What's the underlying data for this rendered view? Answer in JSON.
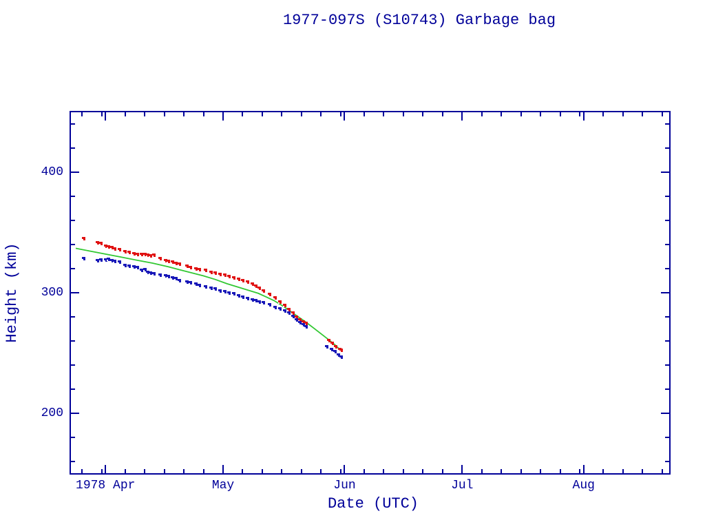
{
  "colors": {
    "background": "#ffffff",
    "axis_and_text": "#000099",
    "red_series": "#e01212",
    "blue_series": "#1818b8",
    "green_series": "#32c832"
  },
  "chart_data": {
    "type": "scatter",
    "title": "1977-097S (S10743) Garbage bag",
    "xlabel": "Date (UTC)",
    "ylabel": "Height (km)",
    "grid": false,
    "legend": "none",
    "x_axis": {
      "unit_note": "days since 1978-03-23; axis spans 1978 Mar 23 - Aug 23",
      "domain": [
        0,
        153
      ],
      "major_ticks": [
        {
          "day": 9,
          "label": "1978 Apr"
        },
        {
          "day": 39,
          "label": "May"
        },
        {
          "day": 70,
          "label": "Jun"
        },
        {
          "day": 100,
          "label": "Jul"
        },
        {
          "day": 131,
          "label": "Aug"
        }
      ],
      "minor_tick_days": [
        3,
        8,
        14,
        19,
        24,
        29,
        34,
        44,
        49,
        54,
        59,
        64,
        69,
        75,
        80,
        85,
        90,
        95,
        105,
        110,
        115,
        120,
        125,
        130,
        136,
        141,
        146,
        151
      ]
    },
    "y_axis": {
      "domain": [
        150,
        450
      ],
      "major_ticks": [
        {
          "value": 200,
          "label": "200"
        },
        {
          "value": 300,
          "label": "300"
        },
        {
          "value": 400,
          "label": "400"
        }
      ],
      "minor_tick_values": [
        160,
        180,
        220,
        240,
        260,
        280,
        320,
        340,
        360,
        380,
        420,
        440
      ]
    },
    "series": [
      {
        "name": "red-square-series",
        "type": "scatter",
        "marker": "square",
        "color": "#e01212",
        "points": [
          [
            3.5,
            344.5
          ],
          [
            7,
            341.5
          ],
          [
            7.8,
            341
          ],
          [
            9,
            338.5
          ],
          [
            9.8,
            338
          ],
          [
            10.6,
            337.2
          ],
          [
            11.4,
            336.5
          ],
          [
            12.6,
            335.5
          ],
          [
            13.9,
            334.2
          ],
          [
            15.1,
            333.2
          ],
          [
            16.2,
            332.4
          ],
          [
            17.1,
            331.8
          ],
          [
            18.1,
            331.8
          ],
          [
            19,
            331.5
          ],
          [
            19.7,
            331.3
          ],
          [
            20.4,
            330.7
          ],
          [
            21.3,
            331.3
          ],
          [
            22.9,
            328
          ],
          [
            24.3,
            326.7
          ],
          [
            25.1,
            326.2
          ],
          [
            26,
            325.2
          ],
          [
            27,
            324.5
          ],
          [
            27.9,
            323.4
          ],
          [
            29.7,
            321.7
          ],
          [
            30.6,
            321
          ],
          [
            32,
            319.9
          ],
          [
            33,
            318.9
          ],
          [
            34.6,
            318.4
          ],
          [
            36,
            316.8
          ],
          [
            36.9,
            316.5
          ],
          [
            38.2,
            315.2
          ],
          [
            39.4,
            314.7
          ],
          [
            40.5,
            313.5
          ],
          [
            41.7,
            312.4
          ],
          [
            43,
            311
          ],
          [
            44,
            310.2
          ],
          [
            45.2,
            308.8
          ],
          [
            46.4,
            307.2
          ],
          [
            47.3,
            305.5
          ],
          [
            48.2,
            303.5
          ],
          [
            49.2,
            301.5
          ],
          [
            50.8,
            298.5
          ],
          [
            52.2,
            295.5
          ],
          [
            53.5,
            292.5
          ],
          [
            54.7,
            289.5
          ],
          [
            55.8,
            286
          ],
          [
            56.8,
            283
          ],
          [
            57.7,
            280
          ],
          [
            58.6,
            277.5
          ],
          [
            59.4,
            276
          ],
          [
            60.1,
            274.5
          ],
          [
            65.9,
            260.6
          ],
          [
            66.9,
            258
          ],
          [
            67.8,
            255.5
          ],
          [
            68.7,
            253
          ],
          [
            69.2,
            252.5
          ]
        ]
      },
      {
        "name": "blue-square-series",
        "type": "scatter",
        "marker": "square",
        "color": "#1818b8",
        "points": [
          [
            3.5,
            328.5
          ],
          [
            7,
            326.7
          ],
          [
            7.8,
            327.3
          ],
          [
            9,
            327.3
          ],
          [
            9.8,
            327.8
          ],
          [
            10.6,
            326.7
          ],
          [
            11.4,
            326.2
          ],
          [
            12.6,
            325.6
          ],
          [
            13.9,
            322.8
          ],
          [
            15.1,
            322.2
          ],
          [
            16.2,
            321.5
          ],
          [
            17.1,
            321
          ],
          [
            18.1,
            318.7
          ],
          [
            19,
            319.3
          ],
          [
            19.7,
            317
          ],
          [
            20.4,
            316.4
          ],
          [
            21.3,
            315.9
          ],
          [
            22.9,
            314.7
          ],
          [
            24.3,
            314.2
          ],
          [
            25.1,
            313.6
          ],
          [
            26,
            312.4
          ],
          [
            27,
            311.8
          ],
          [
            27.9,
            310.1
          ],
          [
            29.7,
            308.9
          ],
          [
            30.6,
            308.3
          ],
          [
            32,
            307
          ],
          [
            33,
            306
          ],
          [
            34.6,
            305
          ],
          [
            36,
            303.5
          ],
          [
            36.9,
            303
          ],
          [
            38.2,
            301.5
          ],
          [
            39.4,
            301
          ],
          [
            40.5,
            300
          ],
          [
            41.7,
            299
          ],
          [
            43,
            297.5
          ],
          [
            44,
            296.5
          ],
          [
            45.2,
            295
          ],
          [
            46.4,
            294
          ],
          [
            47.3,
            293.3
          ],
          [
            48.2,
            292.5
          ],
          [
            49.2,
            291.5
          ],
          [
            50.8,
            290
          ],
          [
            52.2,
            288
          ],
          [
            53.5,
            286.5
          ],
          [
            54.7,
            285
          ],
          [
            55.8,
            283
          ],
          [
            56.8,
            280.5
          ],
          [
            57.7,
            277.5
          ],
          [
            58.6,
            275
          ],
          [
            59.4,
            273.5
          ],
          [
            60.1,
            272
          ],
          [
            65.5,
            255.5
          ],
          [
            66.6,
            252.7
          ],
          [
            67.6,
            251
          ],
          [
            68.5,
            248.2
          ],
          [
            69.1,
            246.5
          ]
        ]
      },
      {
        "name": "green-line-series",
        "type": "line",
        "color": "#32c832",
        "points": [
          [
            1.4,
            336.8
          ],
          [
            5,
            334.5
          ],
          [
            9,
            332
          ],
          [
            13,
            329.5
          ],
          [
            17,
            327
          ],
          [
            21,
            324.5
          ],
          [
            25,
            321.5
          ],
          [
            28,
            319
          ],
          [
            31,
            316.5
          ],
          [
            34,
            314
          ],
          [
            37,
            311
          ],
          [
            40,
            307.5
          ],
          [
            43,
            304.5
          ],
          [
            46,
            301.5
          ],
          [
            48,
            299.5
          ],
          [
            50,
            296.5
          ],
          [
            52,
            293.5
          ],
          [
            54,
            289.5
          ],
          [
            56,
            285
          ],
          [
            58,
            280.5
          ],
          [
            60,
            276
          ],
          [
            62,
            271
          ],
          [
            64,
            266
          ],
          [
            66,
            261
          ],
          [
            67.5,
            257
          ],
          [
            69.3,
            251.5
          ]
        ]
      }
    ]
  }
}
